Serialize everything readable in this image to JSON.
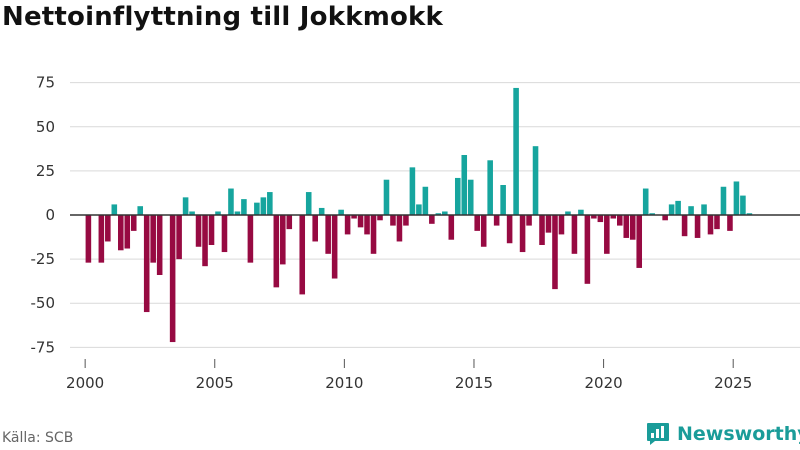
{
  "title": "Nettoinflyttning till Jokkmokk",
  "source": "Källa: SCB",
  "brand": "Newsworthy",
  "colors": {
    "positive": "#16a59e",
    "negative": "#970a42",
    "grid": "#d9d9d9",
    "zero": "#333333",
    "brand": "#1a9c99"
  },
  "chart_data": {
    "type": "bar",
    "title": "Nettoinflyttning till Jokkmokk",
    "xlabel": "",
    "ylabel": "",
    "ylim": [
      -85,
      85
    ],
    "yticks": [
      75,
      50,
      25,
      0,
      -25,
      -50,
      -75
    ],
    "xlim": [
      1999.3,
      2027.5
    ],
    "xticks": [
      2000,
      2005,
      2010,
      2015,
      2020,
      2025
    ],
    "grid": true,
    "x": [
      2000.125,
      2000.375,
      2000.625,
      2000.875,
      2001.125,
      2001.375,
      2001.625,
      2001.875,
      2002.125,
      2002.375,
      2002.625,
      2002.875,
      2003.125,
      2003.375,
      2003.625,
      2003.875,
      2004.125,
      2004.375,
      2004.625,
      2004.875,
      2005.125,
      2005.375,
      2005.625,
      2005.875,
      2006.125,
      2006.375,
      2006.625,
      2006.875,
      2007.125,
      2007.375,
      2007.625,
      2007.875,
      2008.125,
      2008.375,
      2008.625,
      2008.875,
      2009.125,
      2009.375,
      2009.625,
      2009.875,
      2010.125,
      2010.375,
      2010.625,
      2010.875,
      2011.125,
      2011.375,
      2011.625,
      2011.875,
      2012.125,
      2012.375,
      2012.625,
      2012.875,
      2013.125,
      2013.375,
      2013.625,
      2013.875,
      2014.125,
      2014.375,
      2014.625,
      2014.875,
      2015.125,
      2015.375,
      2015.625,
      2015.875,
      2016.125,
      2016.375,
      2016.625,
      2016.875,
      2017.125,
      2017.375,
      2017.625,
      2017.875,
      2018.125,
      2018.375,
      2018.625,
      2018.875,
      2019.125,
      2019.375,
      2019.625,
      2019.875,
      2020.125,
      2020.375,
      2020.625,
      2020.875,
      2021.125,
      2021.375,
      2021.625,
      2021.875,
      2022.125,
      2022.375,
      2022.625,
      2022.875,
      2023.125,
      2023.375,
      2023.625,
      2023.875,
      2024.125,
      2024.375,
      2024.625,
      2024.875,
      2025.125,
      2025.375,
      2025.625,
      2025.875
    ],
    "values": [
      -27,
      0,
      -27,
      -15,
      6,
      -20,
      -19,
      -9,
      5,
      -55,
      -27,
      -34,
      0,
      -72,
      -25,
      10,
      2,
      -18,
      -29,
      -17,
      2,
      -21,
      15,
      2,
      9,
      -27,
      7,
      10,
      13,
      -41,
      -28,
      -8,
      0,
      -45,
      13,
      -15,
      4,
      -22,
      -36,
      3,
      -11,
      -2,
      -7,
      -11,
      -22,
      -3,
      20,
      -6,
      -15,
      -6,
      27,
      6,
      16,
      -5,
      1,
      2,
      -14,
      21,
      34,
      20,
      -9,
      -18,
      31,
      -6,
      17,
      -16,
      72,
      -21,
      -6,
      39,
      -17,
      -10,
      -42,
      -11,
      2,
      -22,
      3,
      -39,
      -2,
      -4,
      -22,
      -2,
      -6,
      -13,
      -14,
      -30,
      15,
      1,
      0,
      -3,
      6,
      8,
      -12,
      5,
      -13,
      6,
      -11,
      -8,
      16,
      -9,
      19,
      11,
      1,
      0
    ]
  }
}
